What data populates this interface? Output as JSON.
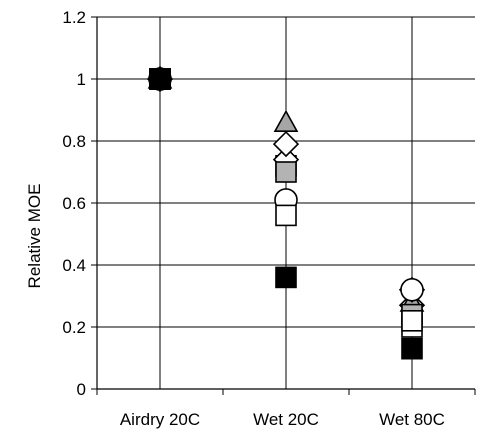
{
  "chart_data": {
    "type": "scatter",
    "title": "",
    "xlabel": "",
    "ylabel": "Relative MOE",
    "categories": [
      "Airdry 20C",
      "Wet 20C",
      "Wet 80C"
    ],
    "ylim": [
      0,
      1.2
    ],
    "yticks": [
      "0",
      "0.2",
      "0.4",
      "0.6",
      "0.8",
      "1",
      "1.2"
    ],
    "grid": true,
    "legend": "none",
    "series": [
      {
        "marker": "square-filled",
        "fill": "#000000",
        "stroke": "#000000",
        "values": [
          1.0,
          0.36,
          0.13
        ]
      },
      {
        "marker": "square-open",
        "fill": "#ffffff",
        "stroke": "#000000",
        "values": [
          1.0,
          0.56,
          0.22
        ]
      },
      {
        "marker": "circle-open",
        "fill": "#ffffff",
        "stroke": "#000000",
        "values": [
          1.0,
          0.61,
          0.32
        ]
      },
      {
        "marker": "square-gray",
        "fill": "#b3b3b3",
        "stroke": "#000000",
        "values": [
          1.0,
          0.7,
          0.24
        ]
      },
      {
        "marker": "diamond-open",
        "fill": "#ffffff",
        "stroke": "#000000",
        "values": [
          1.0,
          0.79,
          0.32
        ]
      },
      {
        "marker": "triangle-gray",
        "fill": "#a6a6a6",
        "stroke": "#000000",
        "values": [
          1.0,
          0.86,
          0.28
        ]
      },
      {
        "marker": "diamond-open",
        "fill": "#ffffff",
        "stroke": "#000000",
        "values": [
          1.0,
          0.74,
          0.27
        ]
      },
      {
        "marker": "square-open",
        "fill": "#ffffff",
        "stroke": "#000000",
        "values": [
          1.0,
          0.72,
          0.2
        ]
      }
    ]
  }
}
